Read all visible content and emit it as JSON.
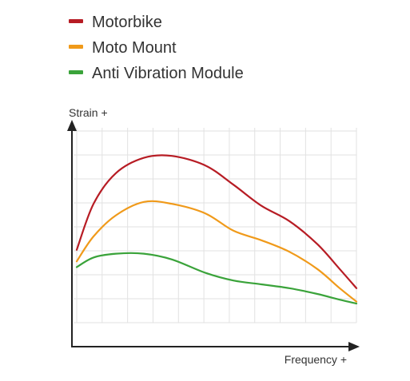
{
  "chart_data": {
    "type": "line",
    "title": "",
    "xlabel": "Frequency +",
    "ylabel": "Strain +",
    "x_ticks_shown": false,
    "y_ticks_shown": false,
    "grid": true,
    "xlim": [
      0,
      100
    ],
    "ylim": [
      0,
      100
    ],
    "legend_position": "top-left",
    "series": [
      {
        "name": "Motorbike",
        "color": "#b71c24",
        "points": [
          {
            "x": 0,
            "y": 38
          },
          {
            "x": 6,
            "y": 62
          },
          {
            "x": 14,
            "y": 78
          },
          {
            "x": 24,
            "y": 86
          },
          {
            "x": 34,
            "y": 87
          },
          {
            "x": 46,
            "y": 82
          },
          {
            "x": 56,
            "y": 72
          },
          {
            "x": 66,
            "y": 61
          },
          {
            "x": 76,
            "y": 53
          },
          {
            "x": 86,
            "y": 41
          },
          {
            "x": 94,
            "y": 28
          },
          {
            "x": 100,
            "y": 18
          }
        ]
      },
      {
        "name": "Moto Mount",
        "color": "#f09a1a",
        "points": [
          {
            "x": 0,
            "y": 32
          },
          {
            "x": 6,
            "y": 45
          },
          {
            "x": 14,
            "y": 56
          },
          {
            "x": 24,
            "y": 63
          },
          {
            "x": 34,
            "y": 62
          },
          {
            "x": 46,
            "y": 57
          },
          {
            "x": 56,
            "y": 48
          },
          {
            "x": 66,
            "y": 43
          },
          {
            "x": 76,
            "y": 37
          },
          {
            "x": 86,
            "y": 28
          },
          {
            "x": 94,
            "y": 18
          },
          {
            "x": 100,
            "y": 11
          }
        ]
      },
      {
        "name": "Anti Vibration Module",
        "color": "#3aa33a",
        "points": [
          {
            "x": 0,
            "y": 29
          },
          {
            "x": 6,
            "y": 34
          },
          {
            "x": 14,
            "y": 36
          },
          {
            "x": 24,
            "y": 36
          },
          {
            "x": 34,
            "y": 33
          },
          {
            "x": 46,
            "y": 26
          },
          {
            "x": 56,
            "y": 22
          },
          {
            "x": 66,
            "y": 20
          },
          {
            "x": 76,
            "y": 18
          },
          {
            "x": 86,
            "y": 15
          },
          {
            "x": 94,
            "y": 12
          },
          {
            "x": 100,
            "y": 10
          }
        ]
      }
    ]
  }
}
